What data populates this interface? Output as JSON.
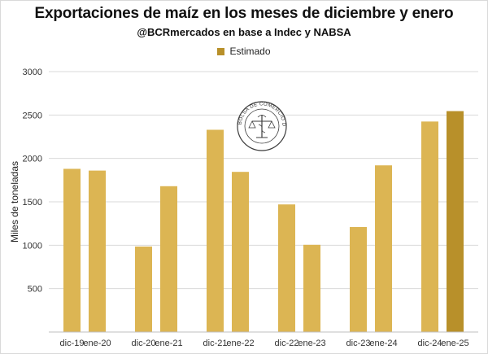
{
  "title": "Exportaciones de maíz en los meses de diciembre y enero",
  "subtitle": "@BCRmercados en base a Indec y NABSA",
  "legend": {
    "label": "Estimado",
    "placement": "top-center"
  },
  "logo": {
    "text": "BOLSA DE COMERCIO DE ROSARIO"
  },
  "colors": {
    "actual": "#dcb553",
    "estimated": "#b8902a",
    "grid": "#d9d9d9"
  },
  "chart_data": {
    "type": "bar",
    "ylabel": "Miles de toneladas",
    "xlabel": "",
    "ylim": [
      0,
      3000
    ],
    "yticks": [
      500,
      1000,
      1500,
      2000,
      2500,
      3000
    ],
    "grid": true,
    "categories": [
      "dic-19",
      "ene-20",
      "dic-20",
      "ene-21",
      "dic-21",
      "ene-22",
      "dic-22",
      "ene-23",
      "dic-23",
      "ene-24",
      "dic-24",
      "ene-25"
    ],
    "values": [
      1880,
      1860,
      985,
      1680,
      2330,
      1845,
      1470,
      1005,
      1210,
      1920,
      2425,
      2545
    ],
    "estimated": [
      false,
      false,
      false,
      false,
      false,
      false,
      false,
      false,
      false,
      false,
      false,
      true
    ]
  }
}
